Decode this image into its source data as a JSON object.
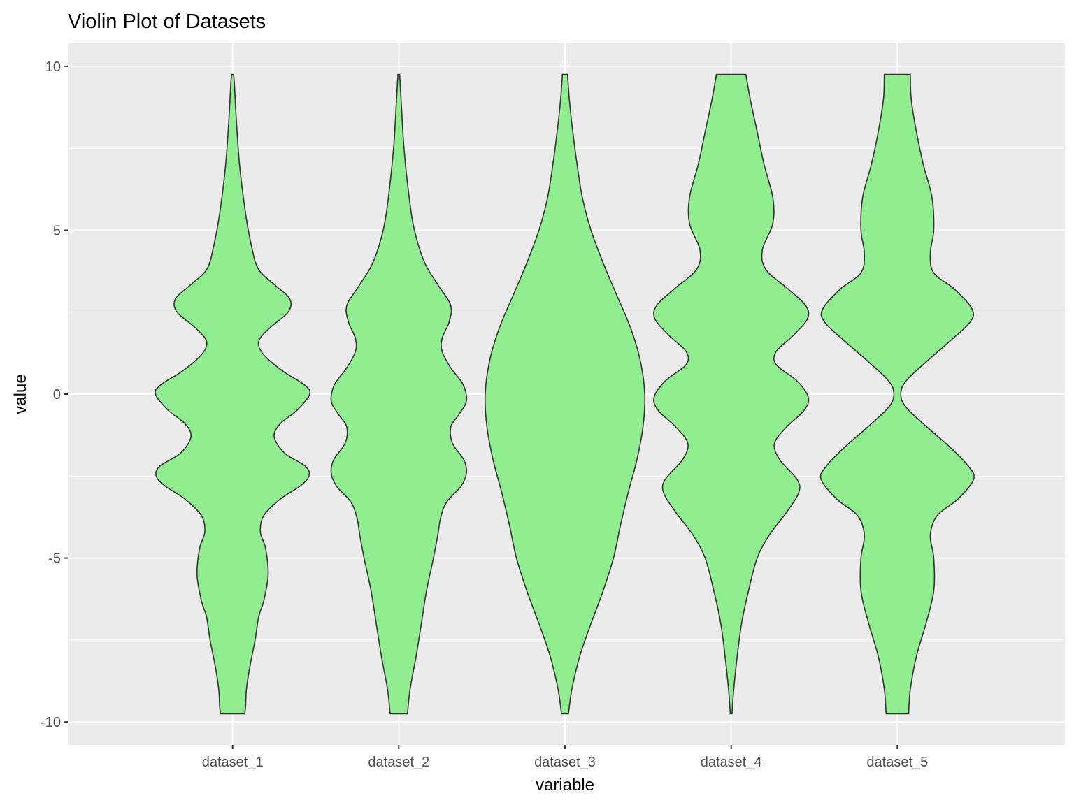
{
  "chart_data": {
    "type": "violin",
    "title": "Violin Plot of Datasets",
    "xlabel": "variable",
    "ylabel": "value",
    "categories": [
      "dataset_1",
      "dataset_2",
      "dataset_3",
      "dataset_4",
      "dataset_5"
    ],
    "ylim": [
      -10.7,
      10.7
    ],
    "yticks": [
      -10,
      -5,
      0,
      5,
      10
    ],
    "ytick_labels": [
      "-10",
      "-5",
      "0",
      "5",
      "10"
    ],
    "grid": true,
    "fill_color": "#90EE90",
    "outline_color": "#333333",
    "panel_background": "#EBEBEB",
    "grid_color": "#FFFFFF",
    "series": [
      {
        "category": "dataset_1",
        "value_range": [
          -9.75,
          9.75
        ],
        "density_profile": [
          [
            -9.75,
            0.14
          ],
          [
            -9.5,
            0.15
          ],
          [
            -9,
            0.16
          ],
          [
            -8.3,
            0.2
          ],
          [
            -7.5,
            0.26
          ],
          [
            -6.8,
            0.3
          ],
          [
            -6.3,
            0.36
          ],
          [
            -5.5,
            0.41
          ],
          [
            -4.7,
            0.38
          ],
          [
            -4.2,
            0.32
          ],
          [
            -3.7,
            0.36
          ],
          [
            -3.2,
            0.55
          ],
          [
            -2.8,
            0.78
          ],
          [
            -2.5,
            0.88
          ],
          [
            -2.2,
            0.84
          ],
          [
            -1.8,
            0.6
          ],
          [
            -1.3,
            0.48
          ],
          [
            -0.9,
            0.55
          ],
          [
            -0.5,
            0.74
          ],
          [
            0,
            0.89
          ],
          [
            0.3,
            0.82
          ],
          [
            0.7,
            0.58
          ],
          [
            1.2,
            0.36
          ],
          [
            1.6,
            0.3
          ],
          [
            2.0,
            0.42
          ],
          [
            2.5,
            0.64
          ],
          [
            2.9,
            0.66
          ],
          [
            3.3,
            0.5
          ],
          [
            3.8,
            0.3
          ],
          [
            4.5,
            0.22
          ],
          [
            5.5,
            0.15
          ],
          [
            7,
            0.08
          ],
          [
            8.5,
            0.04
          ],
          [
            9.5,
            0.02
          ],
          [
            9.75,
            0.01
          ]
        ]
      },
      {
        "category": "dataset_2",
        "value_range": [
          -9.75,
          9.75
        ],
        "density_profile": [
          [
            -9.75,
            0.1
          ],
          [
            -9,
            0.13
          ],
          [
            -8,
            0.2
          ],
          [
            -7,
            0.26
          ],
          [
            -6,
            0.32
          ],
          [
            -5,
            0.4
          ],
          [
            -4.3,
            0.45
          ],
          [
            -3.8,
            0.48
          ],
          [
            -3.3,
            0.55
          ],
          [
            -2.8,
            0.72
          ],
          [
            -2.4,
            0.78
          ],
          [
            -2.0,
            0.75
          ],
          [
            -1.5,
            0.62
          ],
          [
            -1.0,
            0.6
          ],
          [
            -0.6,
            0.7
          ],
          [
            -0.2,
            0.78
          ],
          [
            0.3,
            0.74
          ],
          [
            0.8,
            0.6
          ],
          [
            1.3,
            0.5
          ],
          [
            1.7,
            0.5
          ],
          [
            2.2,
            0.58
          ],
          [
            2.7,
            0.6
          ],
          [
            3.3,
            0.46
          ],
          [
            4,
            0.3
          ],
          [
            5,
            0.18
          ],
          [
            6,
            0.12
          ],
          [
            7.5,
            0.06
          ],
          [
            8.8,
            0.03
          ],
          [
            9.75,
            0.01
          ]
        ]
      },
      {
        "category": "dataset_3",
        "value_range": [
          -9.75,
          9.75
        ],
        "density_profile": [
          [
            -9.75,
            0.04
          ],
          [
            -9,
            0.08
          ],
          [
            -8,
            0.17
          ],
          [
            -7,
            0.3
          ],
          [
            -6,
            0.44
          ],
          [
            -5,
            0.56
          ],
          [
            -4,
            0.64
          ],
          [
            -3,
            0.73
          ],
          [
            -2,
            0.83
          ],
          [
            -1,
            0.9
          ],
          [
            0,
            0.92
          ],
          [
            1,
            0.87
          ],
          [
            2,
            0.76
          ],
          [
            3,
            0.6
          ],
          [
            4,
            0.44
          ],
          [
            5,
            0.3
          ],
          [
            6,
            0.2
          ],
          [
            7,
            0.14
          ],
          [
            8,
            0.09
          ],
          [
            9,
            0.05
          ],
          [
            9.75,
            0.03
          ]
        ]
      },
      {
        "category": "dataset_4",
        "value_range": [
          -9.75,
          9.75
        ],
        "density_profile": [
          [
            -9.75,
            0.01
          ],
          [
            -9,
            0.03
          ],
          [
            -8,
            0.07
          ],
          [
            -7,
            0.12
          ],
          [
            -6,
            0.2
          ],
          [
            -5,
            0.3
          ],
          [
            -4.3,
            0.44
          ],
          [
            -3.6,
            0.64
          ],
          [
            -3.0,
            0.78
          ],
          [
            -2.6,
            0.76
          ],
          [
            -2.0,
            0.56
          ],
          [
            -1.5,
            0.5
          ],
          [
            -1.0,
            0.64
          ],
          [
            -0.5,
            0.84
          ],
          [
            -0.1,
            0.89
          ],
          [
            0.4,
            0.76
          ],
          [
            0.9,
            0.52
          ],
          [
            1.3,
            0.52
          ],
          [
            1.8,
            0.72
          ],
          [
            2.3,
            0.88
          ],
          [
            2.7,
            0.86
          ],
          [
            3.2,
            0.66
          ],
          [
            3.8,
            0.4
          ],
          [
            4.4,
            0.36
          ],
          [
            5.2,
            0.48
          ],
          [
            6.0,
            0.48
          ],
          [
            7,
            0.38
          ],
          [
            8,
            0.3
          ],
          [
            9,
            0.22
          ],
          [
            9.75,
            0.17
          ]
        ]
      },
      {
        "category": "dataset_5",
        "value_range": [
          -9.75,
          9.75
        ],
        "density_profile": [
          [
            -9.75,
            0.13
          ],
          [
            -9,
            0.15
          ],
          [
            -8,
            0.22
          ],
          [
            -7,
            0.33
          ],
          [
            -6,
            0.42
          ],
          [
            -5,
            0.42
          ],
          [
            -4.3,
            0.38
          ],
          [
            -3.7,
            0.46
          ],
          [
            -3.2,
            0.7
          ],
          [
            -2.6,
            0.88
          ],
          [
            -2.2,
            0.82
          ],
          [
            -1.6,
            0.6
          ],
          [
            -1.0,
            0.34
          ],
          [
            -0.4,
            0.1
          ],
          [
            0,
            0.04
          ],
          [
            0.4,
            0.1
          ],
          [
            1.0,
            0.34
          ],
          [
            1.6,
            0.6
          ],
          [
            2.2,
            0.84
          ],
          [
            2.6,
            0.86
          ],
          [
            3.2,
            0.66
          ],
          [
            3.7,
            0.42
          ],
          [
            4.3,
            0.38
          ],
          [
            5,
            0.42
          ],
          [
            6,
            0.4
          ],
          [
            7,
            0.3
          ],
          [
            8,
            0.22
          ],
          [
            9,
            0.16
          ],
          [
            9.75,
            0.15
          ]
        ]
      }
    ]
  }
}
